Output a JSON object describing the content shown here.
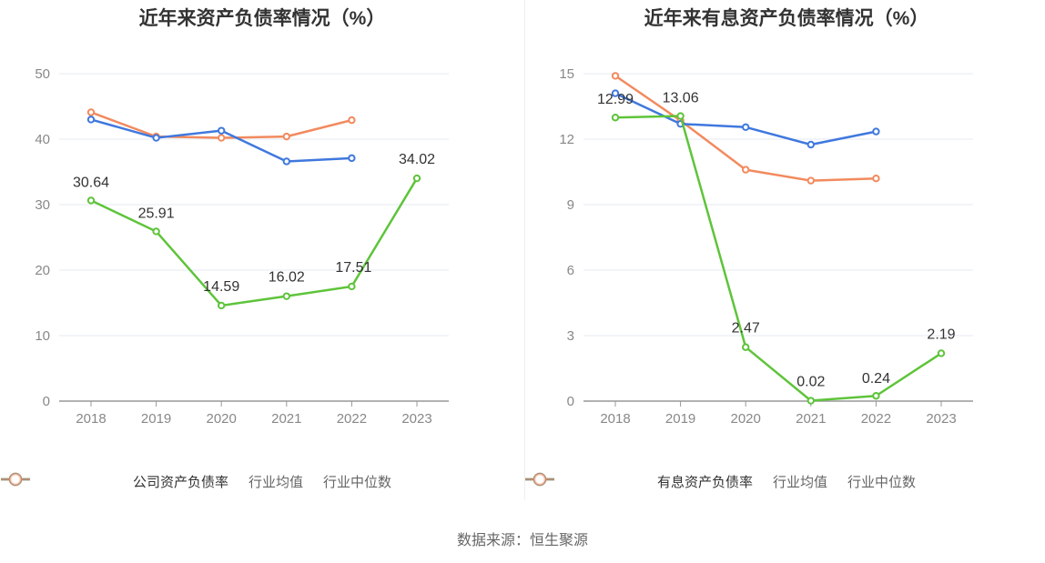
{
  "source_text": "数据来源：恒生聚源",
  "colors": {
    "company": "#5ec43a",
    "avg": "#3f78de",
    "median": "#f28a5e"
  },
  "chart_data": [
    {
      "type": "line",
      "title": "近年来资产负债率情况（%）",
      "categories": [
        "2018",
        "2019",
        "2020",
        "2021",
        "2022",
        "2023"
      ],
      "ylim": [
        0,
        50
      ],
      "yticks": [
        0,
        10,
        20,
        30,
        40,
        50
      ],
      "legend_position": "bottom",
      "series": [
        {
          "name": "公司资产负债率",
          "key": "company",
          "values": [
            30.64,
            25.91,
            14.59,
            16.02,
            17.51,
            34.02
          ],
          "labels": [
            "30.64",
            "25.91",
            "14.59",
            "16.02",
            "17.51",
            "34.02"
          ]
        },
        {
          "name": "行业均值",
          "key": "avg",
          "values": [
            43.0,
            40.2,
            41.3,
            36.6,
            37.1,
            null
          ]
        },
        {
          "name": "行业中位数",
          "key": "median",
          "values": [
            44.1,
            40.4,
            40.2,
            40.4,
            42.9,
            null
          ]
        }
      ]
    },
    {
      "type": "line",
      "title": "近年来有息资产负债率情况（%）",
      "categories": [
        "2018",
        "2019",
        "2020",
        "2021",
        "2022",
        "2023"
      ],
      "ylim": [
        0,
        15
      ],
      "yticks": [
        0,
        3,
        6,
        9,
        12,
        15
      ],
      "legend_position": "bottom",
      "series": [
        {
          "name": "有息资产负债率",
          "key": "company",
          "values": [
            12.99,
            13.06,
            2.47,
            0.02,
            0.24,
            2.19
          ],
          "labels": [
            "12.99",
            "13.06",
            "2.47",
            "0.02",
            "0.24",
            "2.19"
          ]
        },
        {
          "name": "行业均值",
          "key": "avg",
          "values": [
            14.1,
            12.7,
            12.55,
            11.75,
            12.35,
            null
          ]
        },
        {
          "name": "行业中位数",
          "key": "median",
          "values": [
            14.9,
            12.85,
            10.6,
            10.1,
            10.2,
            null
          ]
        }
      ]
    }
  ]
}
